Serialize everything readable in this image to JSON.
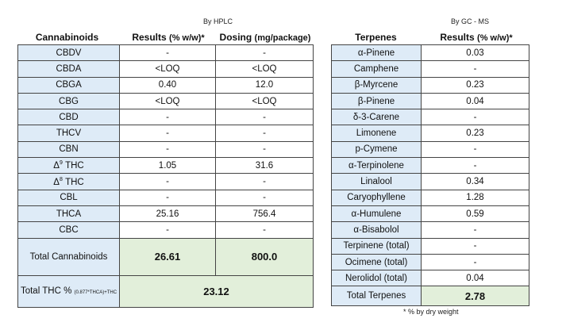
{
  "hplc_label": "By HPLC",
  "gcms_label": "By GC - MS",
  "cannabinoids": {
    "headers": {
      "name": "Cannabinoids",
      "results": "Results",
      "results_unit": "(% w/w)*",
      "dosing": "Dosing",
      "dosing_unit": "(mg/package)"
    },
    "rows": [
      {
        "name": "CBDV",
        "result": "-",
        "dose": "-"
      },
      {
        "name": "CBDA",
        "result": "<LOQ",
        "dose": "<LOQ"
      },
      {
        "name": "CBGA",
        "result": "0.40",
        "dose": "12.0"
      },
      {
        "name": "CBG",
        "result": "<LOQ",
        "dose": "<LOQ"
      },
      {
        "name": "CBD",
        "result": "-",
        "dose": "-"
      },
      {
        "name": "THCV",
        "result": "-",
        "dose": "-"
      },
      {
        "name": "CBN",
        "result": "-",
        "dose": "-"
      },
      {
        "name": "Δ",
        "sup": "9",
        "name2": " THC",
        "result": "1.05",
        "dose": "31.6"
      },
      {
        "name": "Δ",
        "sup": "8",
        "name2": " THC",
        "result": "-",
        "dose": "-"
      },
      {
        "name": "CBL",
        "result": "-",
        "dose": "-"
      },
      {
        "name": "THCA",
        "result": "25.16",
        "dose": "756.4"
      },
      {
        "name": "CBC",
        "result": "-",
        "dose": "-"
      }
    ],
    "total_label": "Total Cannabinoids",
    "total_result": "26.61",
    "total_dose": "800.0",
    "thc_label": "Total THC %",
    "thc_formula": "(0.877*THCA)+THC",
    "thc_value": "23.12"
  },
  "terpenes": {
    "headers": {
      "name": "Terpenes",
      "results": "Results",
      "results_unit": "(% w/w)*"
    },
    "rows": [
      {
        "name": "α-Pinene",
        "result": "0.03"
      },
      {
        "name": "Camphene",
        "result": "-"
      },
      {
        "name": "β-Myrcene",
        "result": "0.23"
      },
      {
        "name": "β-Pinene",
        "result": "0.04"
      },
      {
        "name": "δ-3-Carene",
        "result": "-"
      },
      {
        "name": "Limonene",
        "result": "0.23"
      },
      {
        "name": "p-Cymene",
        "result": "-"
      },
      {
        "name": "α-Terpinolene",
        "result": "-"
      },
      {
        "name": "Linalool",
        "result": "0.34"
      },
      {
        "name": "Caryophyllene",
        "result": "1.28"
      },
      {
        "name": "α-Humulene",
        "result": "0.59"
      },
      {
        "name": "α-Bisabolol",
        "result": "-"
      },
      {
        "name": "Terpinene (total)",
        "result": "-"
      },
      {
        "name": "Ocimene (total)",
        "result": "-"
      },
      {
        "name": "Nerolidol (total)",
        "result": "0.04"
      }
    ],
    "total_label": "Total Terpenes",
    "total_result": "2.78"
  },
  "footnote": "* % by dry weight"
}
